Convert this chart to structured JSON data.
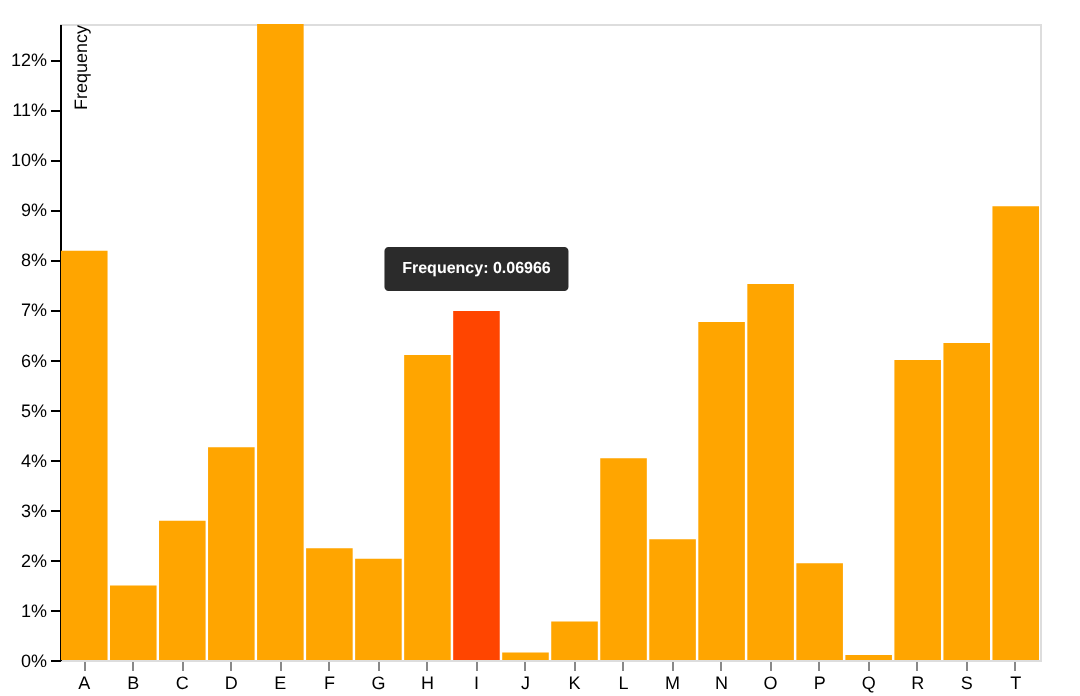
{
  "chart_data": {
    "type": "bar",
    "ylabel": "Frequency",
    "categories": [
      "A",
      "B",
      "C",
      "D",
      "E",
      "F",
      "G",
      "H",
      "I",
      "J",
      "K",
      "L",
      "M",
      "N",
      "O",
      "P",
      "Q",
      "R",
      "S",
      "T"
    ],
    "values": [
      8.17,
      1.49,
      2.78,
      4.25,
      12.7,
      2.23,
      2.02,
      6.09,
      6.97,
      0.15,
      0.77,
      4.03,
      2.41,
      6.75,
      7.51,
      1.93,
      0.1,
      5.99,
      6.33,
      9.06
    ],
    "colors": [
      "#ffa500",
      "#ffa500",
      "#ffa500",
      "#ffa500",
      "#ffa500",
      "#ffa500",
      "#ffa500",
      "#ffa500",
      "#ff4500",
      "#ffa500",
      "#ffa500",
      "#ffa500",
      "#ffa500",
      "#ffa500",
      "#ffa500",
      "#ffa500",
      "#ffa500",
      "#ffa500",
      "#ffa500",
      "#ffa500"
    ],
    "ylim": [
      0,
      12.7
    ],
    "yticks": [
      {
        "value": 0,
        "label": "0%"
      },
      {
        "value": 1,
        "label": "1%"
      },
      {
        "value": 2,
        "label": "2%"
      },
      {
        "value": 3,
        "label": "3%"
      },
      {
        "value": 4,
        "label": "4%"
      },
      {
        "value": 5,
        "label": "5%"
      },
      {
        "value": 6,
        "label": "6%"
      },
      {
        "value": 7,
        "label": "7%"
      },
      {
        "value": 8,
        "label": "8%"
      },
      {
        "value": 9,
        "label": "9%"
      },
      {
        "value": 10,
        "label": "10%"
      },
      {
        "value": 11,
        "label": "11%"
      },
      {
        "value": 12,
        "label": "12%"
      }
    ],
    "annotations": [
      {
        "text": "Frequency: 0.06966",
        "x": "I",
        "y": 6.97
      }
    ],
    "grid": false
  }
}
